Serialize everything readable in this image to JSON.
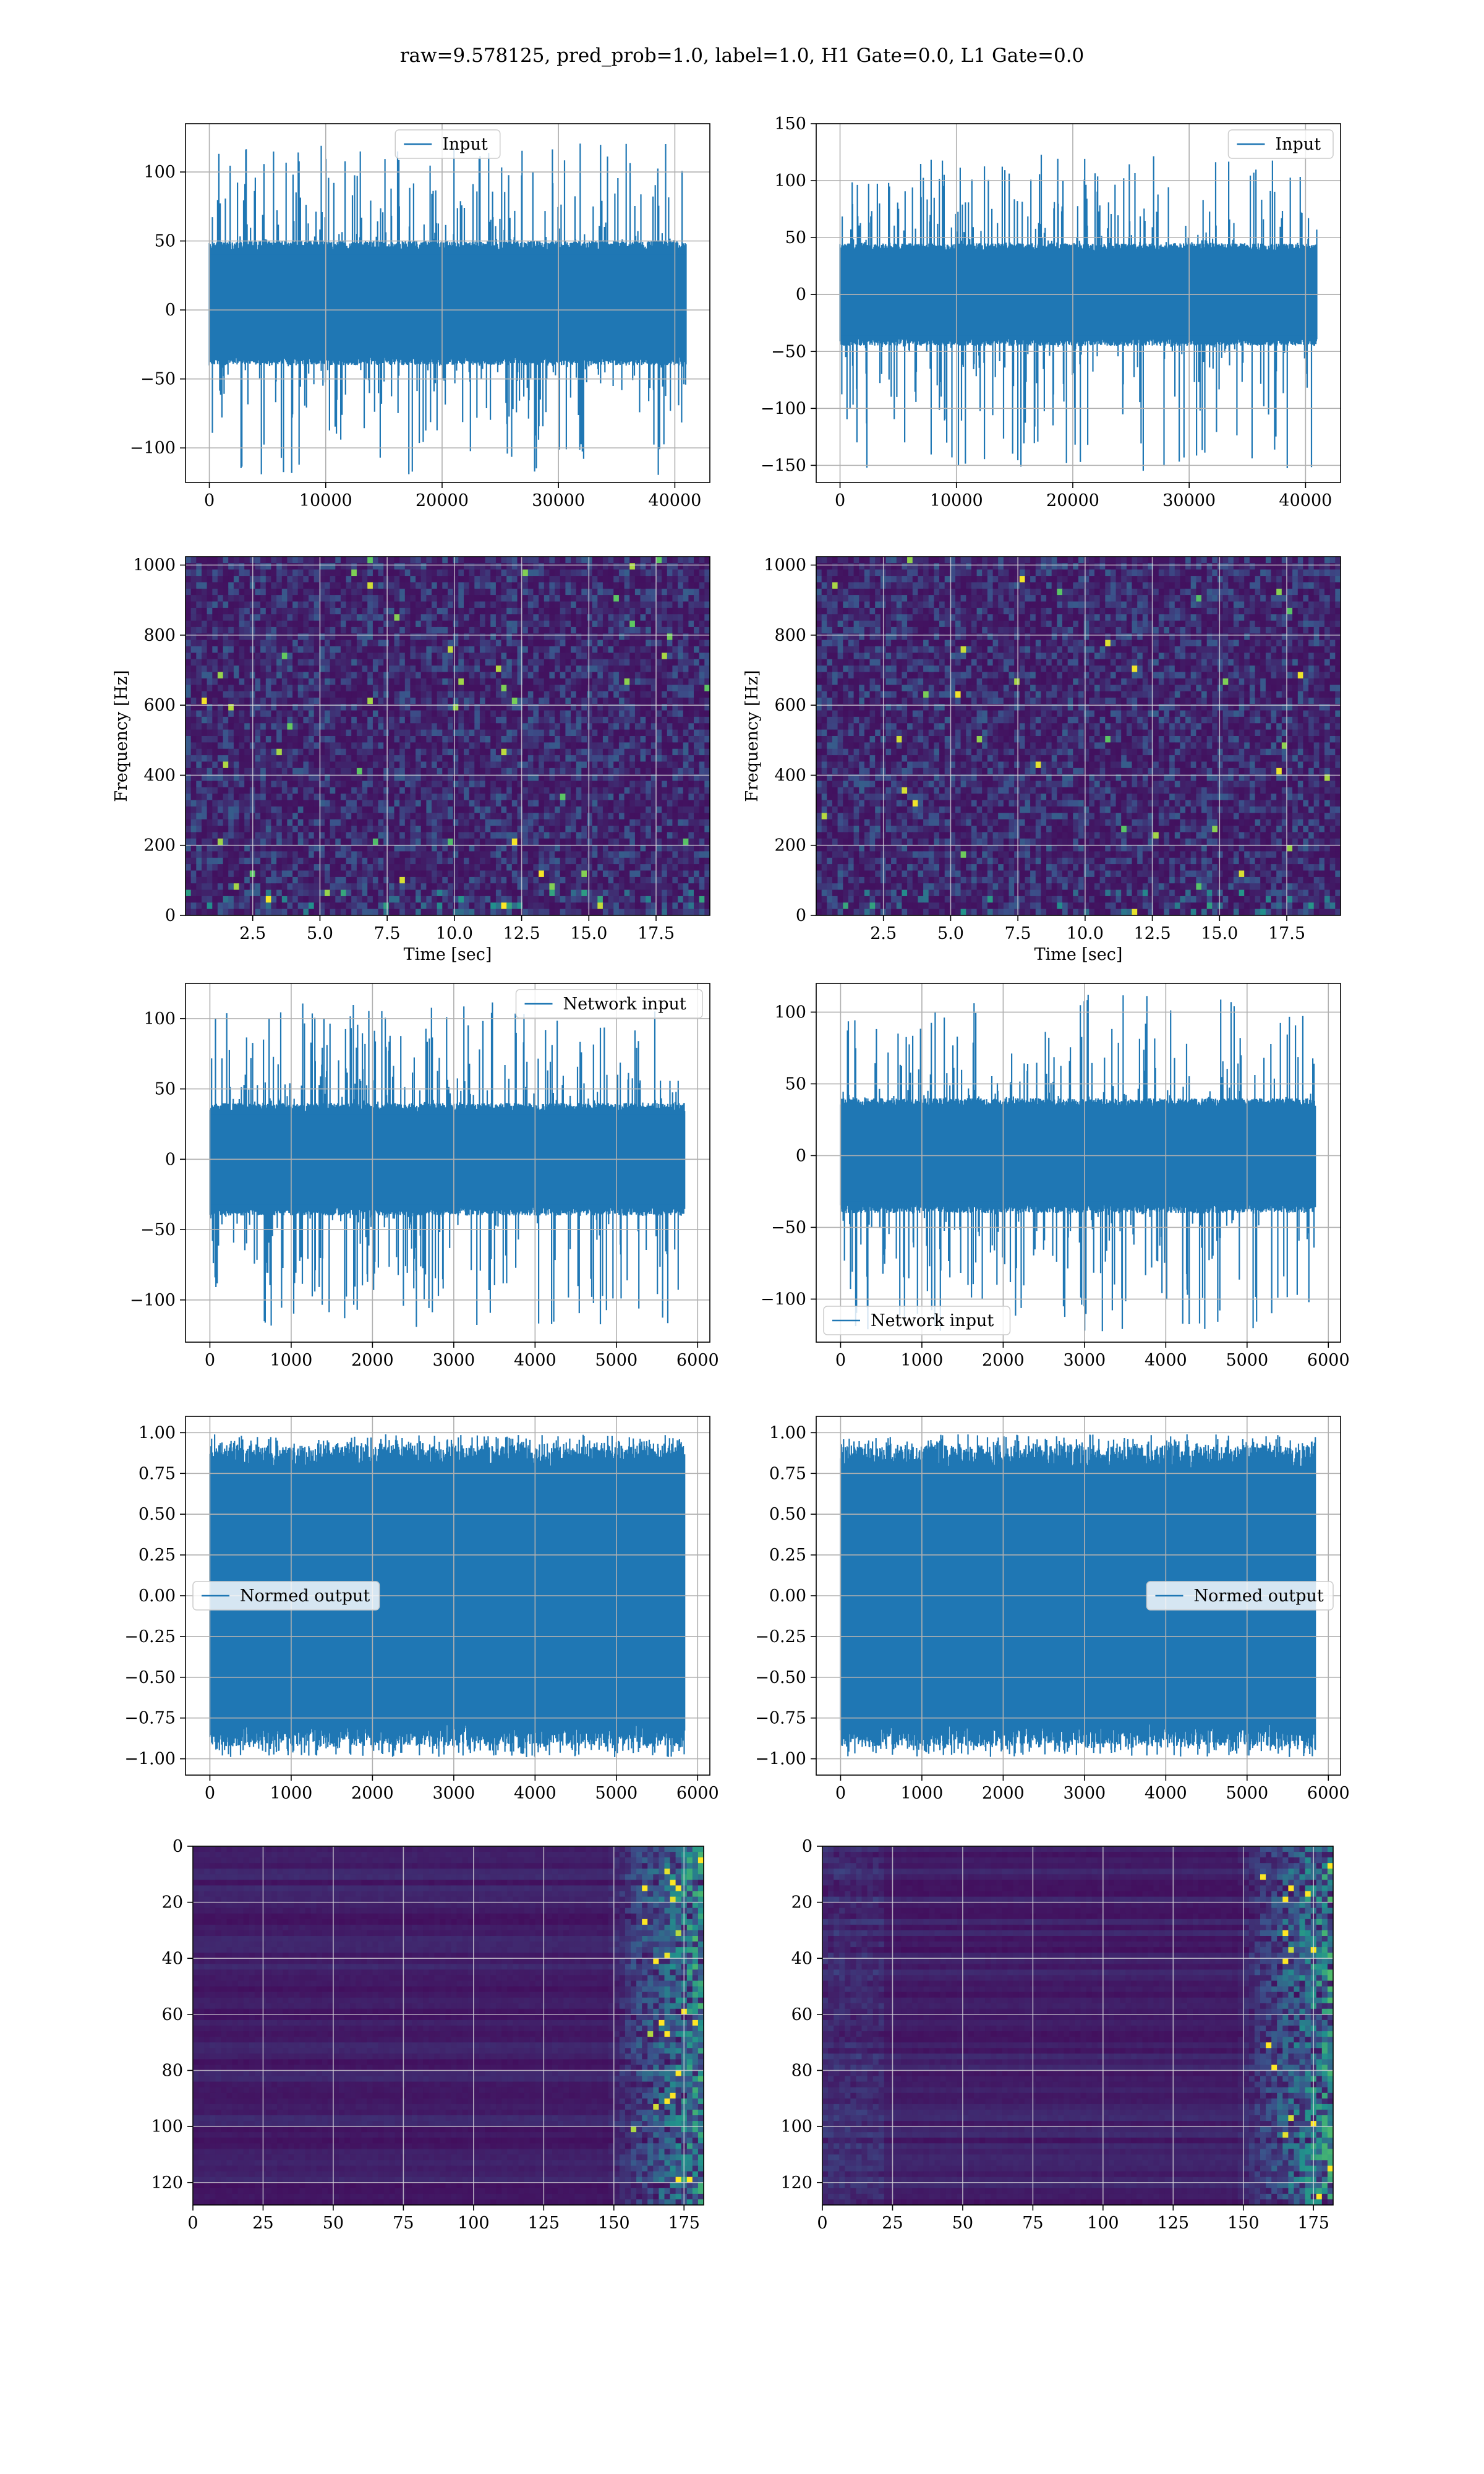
{
  "figure": {
    "title": "raw=9.578125, pred_prob=1.0, label=1.0, H1 Gate=0.0, L1 Gate=0.0",
    "colors": {
      "line": "#1f77b4",
      "grid": "#b0b0b0",
      "viridis_low": "#440154",
      "viridis_mid": "#21918c",
      "viridis_high": "#fde725"
    },
    "colormap": "viridis"
  },
  "chart_data": [
    {
      "id": "input-h1",
      "type": "line",
      "legend": {
        "label": "Input",
        "placement": "upper center"
      },
      "x_range": [
        0,
        40960
      ],
      "xlim": [
        -2048,
        43008
      ],
      "ylim": [
        -125,
        135
      ],
      "xticks": [
        0,
        10000,
        20000,
        30000,
        40000
      ],
      "yticks": [
        -100,
        -50,
        0,
        50,
        100
      ],
      "xlabel": "",
      "ylabel": "",
      "signal": {
        "band": [
          -40,
          50
        ],
        "max": 122,
        "min": -120
      },
      "grid": true
    },
    {
      "id": "input-l1",
      "type": "line",
      "legend": {
        "label": "Input",
        "placement": "upper right"
      },
      "x_range": [
        0,
        40960
      ],
      "xlim": [
        -2048,
        43008
      ],
      "ylim": [
        -165,
        150
      ],
      "xticks": [
        0,
        10000,
        20000,
        30000,
        40000
      ],
      "yticks": [
        -150,
        -100,
        -50,
        0,
        50,
        100,
        150
      ],
      "xlabel": "",
      "ylabel": "",
      "signal": {
        "band": [
          -45,
          45
        ],
        "max": 123,
        "min": -155
      },
      "grid": true
    },
    {
      "id": "spectrogram-h1",
      "type": "heatmap",
      "xlabel": "Time [sec]",
      "ylabel": "Frequency [Hz]",
      "xlim": [
        0,
        19.5
      ],
      "ylim": [
        0,
        1024
      ],
      "xticks": [
        2.5,
        5.0,
        7.5,
        10.0,
        12.5,
        15.0,
        17.5
      ],
      "yticks": [
        0,
        200,
        400,
        600,
        800,
        1000
      ],
      "grid": true
    },
    {
      "id": "spectrogram-l1",
      "type": "heatmap",
      "xlabel": "Time [sec]",
      "ylabel": "Frequency [Hz]",
      "xlim": [
        0,
        19.5
      ],
      "ylim": [
        0,
        1024
      ],
      "xticks": [
        2.5,
        5.0,
        7.5,
        10.0,
        12.5,
        15.0,
        17.5
      ],
      "yticks": [
        0,
        200,
        400,
        600,
        800,
        1000
      ],
      "grid": true
    },
    {
      "id": "network-input-h1",
      "type": "line",
      "legend": {
        "label": "Network input",
        "placement": "upper right"
      },
      "x_range": [
        0,
        5840
      ],
      "xlim": [
        -300,
        6150
      ],
      "ylim": [
        -130,
        125
      ],
      "xticks": [
        0,
        1000,
        2000,
        3000,
        4000,
        5000,
        6000
      ],
      "yticks": [
        -100,
        -50,
        0,
        50,
        100
      ],
      "xlabel": "",
      "ylabel": "",
      "signal": {
        "band": [
          -40,
          40
        ],
        "max": 112,
        "min": -120
      },
      "grid": true
    },
    {
      "id": "network-input-l1",
      "type": "line",
      "legend": {
        "label": "Network input",
        "placement": "lower left"
      },
      "x_range": [
        0,
        5840
      ],
      "xlim": [
        -300,
        6150
      ],
      "ylim": [
        -130,
        120
      ],
      "xticks": [
        0,
        1000,
        2000,
        3000,
        4000,
        5000,
        6000
      ],
      "yticks": [
        -100,
        -50,
        0,
        50,
        100
      ],
      "xlabel": "",
      "ylabel": "",
      "signal": {
        "band": [
          -40,
          40
        ],
        "max": 113,
        "min": -123
      },
      "grid": true
    },
    {
      "id": "normed-output-h1",
      "type": "line",
      "legend": {
        "label": "Normed output",
        "placement": "center left"
      },
      "x_range": [
        0,
        5840
      ],
      "xlim": [
        -300,
        6150
      ],
      "ylim": [
        -1.1,
        1.1
      ],
      "xticks": [
        0,
        1000,
        2000,
        3000,
        4000,
        5000,
        6000
      ],
      "yticks": [
        -1.0,
        -0.75,
        -0.5,
        -0.25,
        0.0,
        0.25,
        0.5,
        0.75,
        1.0
      ],
      "xlabel": "",
      "ylabel": "",
      "signal": {
        "band": [
          -0.92,
          0.92
        ],
        "max": 0.99,
        "min": -0.99
      },
      "grid": true
    },
    {
      "id": "normed-output-l1",
      "type": "line",
      "legend": {
        "label": "Normed output",
        "placement": "center right"
      },
      "x_range": [
        0,
        5840
      ],
      "xlim": [
        -300,
        6150
      ],
      "ylim": [
        -1.1,
        1.1
      ],
      "xticks": [
        0,
        1000,
        2000,
        3000,
        4000,
        5000,
        6000
      ],
      "yticks": [
        -1.0,
        -0.75,
        -0.5,
        -0.25,
        0.0,
        0.25,
        0.5,
        0.75,
        1.0
      ],
      "xlabel": "",
      "ylabel": "",
      "signal": {
        "band": [
          -0.92,
          0.92
        ],
        "max": 0.99,
        "min": -0.99
      },
      "grid": true
    },
    {
      "id": "feature-map-h1",
      "type": "heatmap",
      "xlim": [
        0,
        182
      ],
      "ylim": [
        128,
        0
      ],
      "xticks": [
        0,
        25,
        50,
        75,
        100,
        125,
        150,
        175
      ],
      "yticks": [
        0,
        20,
        40,
        60,
        80,
        100,
        120
      ],
      "y_inverted": true,
      "grid": true
    },
    {
      "id": "feature-map-l1",
      "type": "heatmap",
      "xlim": [
        0,
        182
      ],
      "ylim": [
        128,
        0
      ],
      "xticks": [
        0,
        25,
        50,
        75,
        100,
        125,
        150,
        175
      ],
      "yticks": [
        0,
        20,
        40,
        60,
        80,
        100,
        120
      ],
      "y_inverted": true,
      "grid": true
    }
  ]
}
